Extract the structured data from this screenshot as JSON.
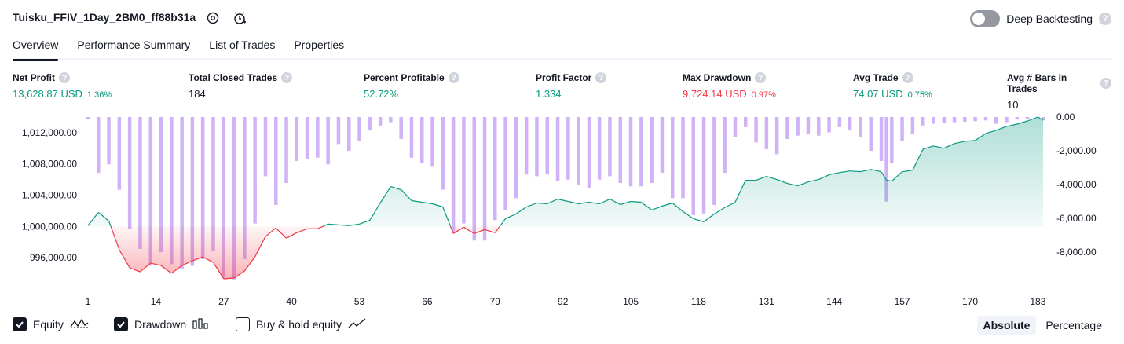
{
  "header": {
    "title": "Tuisku_FFIV_1Day_2BM0_ff88b31a",
    "deep_backtesting_label": "Deep Backtesting",
    "deep_backtesting_enabled": false,
    "help_glyph": "?",
    "icons": [
      "settings-icon",
      "alarm-add-icon"
    ]
  },
  "tabs": [
    {
      "label": "Overview",
      "active": true
    },
    {
      "label": "Performance Summary",
      "active": false
    },
    {
      "label": "List of Trades",
      "active": false
    },
    {
      "label": "Properties",
      "active": false
    }
  ],
  "stats": {
    "net_profit": {
      "label": "Net Profit",
      "value": "13,628.87 USD",
      "pct": "1.36%"
    },
    "total_closed_trades": {
      "label": "Total Closed Trades",
      "value": "184"
    },
    "percent_profitable": {
      "label": "Percent Profitable",
      "value": "52.72%"
    },
    "profit_factor": {
      "label": "Profit Factor",
      "value": "1.334"
    },
    "max_drawdown": {
      "label": "Max Drawdown",
      "value": "9,724.14 USD",
      "pct": "0.97%"
    },
    "avg_trade": {
      "label": "Avg Trade",
      "value": "74.07 USD",
      "pct": "0.75%"
    },
    "avg_bars": {
      "label": "Avg # Bars in Trades",
      "value": "10"
    }
  },
  "colors": {
    "profit": "#089981",
    "loss": "#f23645",
    "drawdown_bar": "#cbaaf5",
    "equity_fill_top": "#b2dfd5",
    "dark": "#131722"
  },
  "chart_data": {
    "type": "area",
    "x_ticks": [
      "1",
      "14",
      "27",
      "40",
      "53",
      "66",
      "79",
      "92",
      "105",
      "118",
      "131",
      "144",
      "157",
      "170",
      "183"
    ],
    "left_axis": {
      "ticks": [
        "1,012,000.00",
        "1,008,000.00",
        "1,004,000.00",
        "1,000,000.00",
        "996,000.00"
      ],
      "range": [
        993000,
        1014000
      ]
    },
    "right_axis": {
      "ticks": [
        "0.00",
        "-2,000.00",
        "-4,000.00",
        "-6,000.00",
        "-8,000.00"
      ],
      "range": [
        -9800,
        0
      ]
    },
    "xlim": [
      1,
      184
    ],
    "baseline": 1000000,
    "series": [
      {
        "name": "Equity",
        "type": "area",
        "x": [
          1,
          3,
          5,
          7,
          9,
          11,
          13,
          15,
          17,
          19,
          21,
          23,
          25,
          27,
          29,
          31,
          33,
          35,
          37,
          39,
          41,
          43,
          45,
          47,
          49,
          51,
          53,
          55,
          57,
          59,
          61,
          63,
          65,
          67,
          69,
          71,
          73,
          75,
          77,
          79,
          81,
          83,
          85,
          87,
          89,
          91,
          93,
          95,
          97,
          99,
          101,
          103,
          105,
          107,
          109,
          111,
          113,
          115,
          117,
          119,
          121,
          123,
          125,
          127,
          129,
          131,
          133,
          135,
          137,
          139,
          141,
          143,
          145,
          147,
          149,
          151,
          153,
          154,
          155,
          157,
          159,
          161,
          163,
          165,
          167,
          169,
          171,
          173,
          175,
          177,
          179,
          181,
          183,
          184
        ],
        "y": [
          1000100,
          1001800,
          1000700,
          997000,
          994700,
          994200,
          995300,
          995000,
          994000,
          995000,
          995600,
          996100,
          995400,
          993300,
          993400,
          994300,
          996100,
          998700,
          999800,
          998500,
          999200,
          999700,
          999700,
          1000300,
          1000200,
          1000100,
          1000300,
          1000800,
          1003000,
          1005100,
          1004700,
          1003300,
          1003100,
          1002900,
          1002500,
          999100,
          999900,
          999100,
          999600,
          999200,
          1001000,
          1001600,
          1002500,
          1003000,
          1002900,
          1003500,
          1003200,
          1002900,
          1003100,
          1002900,
          1003500,
          1002800,
          1003200,
          1003100,
          1002100,
          1002600,
          1003000,
          1001900,
          1001000,
          1000600,
          1001600,
          1002400,
          1003100,
          1005900,
          1005900,
          1006400,
          1006000,
          1005500,
          1005200,
          1005700,
          1006000,
          1006600,
          1006900,
          1007100,
          1007000,
          1007300,
          1007000,
          1005900,
          1005800,
          1007000,
          1007200,
          1009900,
          1010300,
          1010000,
          1010600,
          1010900,
          1011000,
          1011900,
          1012300,
          1012800,
          1013100,
          1013500,
          1014000,
          1013600
        ]
      },
      {
        "name": "Drawdown",
        "type": "bar",
        "x": [
          1,
          3,
          5,
          7,
          9,
          11,
          13,
          15,
          17,
          19,
          21,
          23,
          25,
          27,
          29,
          31,
          33,
          35,
          37,
          39,
          41,
          43,
          45,
          47,
          49,
          51,
          53,
          55,
          57,
          59,
          61,
          63,
          65,
          67,
          69,
          71,
          73,
          75,
          77,
          79,
          81,
          83,
          85,
          87,
          89,
          91,
          93,
          95,
          97,
          99,
          101,
          103,
          105,
          107,
          109,
          111,
          113,
          115,
          117,
          119,
          121,
          123,
          125,
          127,
          129,
          131,
          133,
          135,
          137,
          139,
          141,
          143,
          145,
          147,
          149,
          151,
          153,
          154,
          155,
          157,
          159,
          161,
          163,
          165,
          167,
          169,
          171,
          173,
          175,
          177,
          179,
          181,
          183,
          184
        ],
        "y": [
          -150,
          -3300,
          -2800,
          -4300,
          -6600,
          -7800,
          -8800,
          -8000,
          -8700,
          -9000,
          -8800,
          -8400,
          -7900,
          -9500,
          -9600,
          -8400,
          -6300,
          -3500,
          -5200,
          -3900,
          -2600,
          -2500,
          -2400,
          -2800,
          -1600,
          -2000,
          -1400,
          -800,
          -500,
          -300,
          -1300,
          -2400,
          -2700,
          -2900,
          -4300,
          -6800,
          -6300,
          -7300,
          -7300,
          -6100,
          -5500,
          -4800,
          -3400,
          -3500,
          -3400,
          -3800,
          -3700,
          -4000,
          -4200,
          -3700,
          -3500,
          -3900,
          -4100,
          -4100,
          -3900,
          -3300,
          -4800,
          -4800,
          -5800,
          -5700,
          -5200,
          -3300,
          -1200,
          -600,
          -1500,
          -1900,
          -2200,
          -1300,
          -1100,
          -1000,
          -1100,
          -900,
          -600,
          -800,
          -1200,
          -2000,
          -2600,
          -5000,
          -2700,
          -1400,
          -1000,
          -500,
          -400,
          -350,
          -300,
          -280,
          -250,
          -200,
          -400,
          -300,
          -150,
          -100,
          -50,
          -200
        ]
      }
    ]
  },
  "legend": {
    "equity": {
      "label": "Equity",
      "checked": true
    },
    "drawdown": {
      "label": "Drawdown",
      "checked": true
    },
    "buy_hold": {
      "label": "Buy & hold equity",
      "checked": false
    }
  },
  "view_mode": {
    "absolute": "Absolute",
    "percentage": "Percentage",
    "selected": "absolute"
  }
}
